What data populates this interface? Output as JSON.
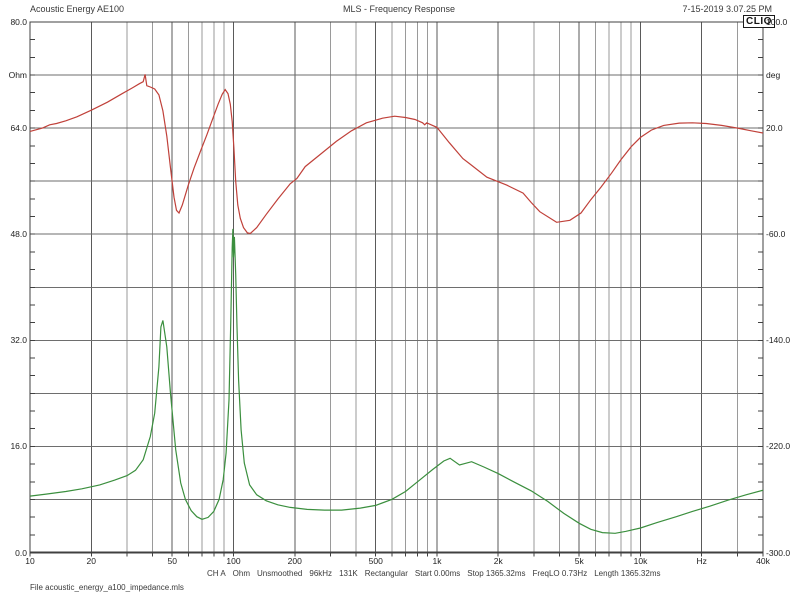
{
  "header": {
    "left": "Acoustic Energy AE100",
    "center": "MLS - Frequency Response",
    "right": "7-15-2019 3.07.25 PM"
  },
  "logo": "CLIO",
  "file_label": "File acoustic_energy_a100_impedance.mls",
  "status_bar": {
    "items": [
      "CH A",
      "Ohm",
      "Unsmoothed",
      "96kHz",
      "131K",
      "Rectangular",
      "Start 0.00ms",
      "Stop 1365.32ms",
      "FreqLO 0.73Hz",
      "Length 1365.32ms"
    ]
  },
  "colors": {
    "impedance": "#3b8f3e",
    "phase": "#c0413a",
    "grid_major": "#5a5a5a",
    "grid_minor": "#9a9a9a",
    "border": "#404040",
    "background": "#ffffff"
  },
  "chart_data": {
    "type": "line",
    "x_scale": "log",
    "x_range": [
      10,
      40000
    ],
    "x_axis_unit": "Hz",
    "x_tick_values": [
      10,
      20,
      50,
      100,
      200,
      500,
      1000,
      2000,
      5000,
      10000,
      20000,
      40000
    ],
    "x_tick_labels": [
      "10",
      "20",
      "50",
      "100",
      "200",
      "500",
      "1k",
      "2k",
      "5k",
      "10k",
      "Hz",
      "40k"
    ],
    "left_axis": {
      "unit": "Ohm",
      "min": 0,
      "max": 80,
      "grid_step": 8,
      "unit_label_at": 72,
      "tick_values": [
        80,
        64,
        48,
        32,
        16,
        0
      ],
      "tick_labels": [
        "80.0",
        "64.0",
        "48.0",
        "32.0",
        "16.0",
        "0.0"
      ]
    },
    "right_axis": {
      "unit": "deg",
      "min": -300,
      "max": 100,
      "unit_label_at": 60,
      "tick_values": [
        100,
        20,
        -60,
        -140,
        -220,
        -300
      ],
      "tick_labels": [
        "100.0",
        "20.0",
        "-60.0",
        "-140.0",
        "-220.0",
        "-300.0"
      ]
    },
    "grid": {
      "y_minor_tick_divisions": 30
    },
    "series": [
      {
        "name": "impedance-magnitude",
        "unit": "Ohm",
        "axis": "left",
        "color": "#3b8f3e",
        "points": [
          [
            10,
            8.5
          ],
          [
            12,
            8.8
          ],
          [
            15,
            9.2
          ],
          [
            18,
            9.6
          ],
          [
            22,
            10.2
          ],
          [
            26,
            10.9
          ],
          [
            30,
            11.6
          ],
          [
            33,
            12.4
          ],
          [
            36,
            14
          ],
          [
            39,
            17.5
          ],
          [
            41,
            21
          ],
          [
            43,
            28
          ],
          [
            44,
            34
          ],
          [
            45,
            35
          ],
          [
            47,
            31
          ],
          [
            49,
            24
          ],
          [
            52,
            15.5
          ],
          [
            55,
            10.5
          ],
          [
            58,
            8
          ],
          [
            62,
            6.3
          ],
          [
            66,
            5.4
          ],
          [
            70,
            5
          ],
          [
            75,
            5.3
          ],
          [
            80,
            6.2
          ],
          [
            85,
            8
          ],
          [
            89,
            11
          ],
          [
            92,
            15
          ],
          [
            95,
            23
          ],
          [
            97,
            35
          ],
          [
            98.5,
            46
          ],
          [
            99.3,
            48.8
          ],
          [
            100,
            44.5
          ],
          [
            101,
            47.6
          ],
          [
            102.5,
            42
          ],
          [
            104,
            34
          ],
          [
            106,
            26
          ],
          [
            109,
            18.5
          ],
          [
            113,
            13.5
          ],
          [
            120,
            10.2
          ],
          [
            130,
            8.7
          ],
          [
            145,
            7.8
          ],
          [
            165,
            7.2
          ],
          [
            190,
            6.8
          ],
          [
            230,
            6.5
          ],
          [
            280,
            6.4
          ],
          [
            340,
            6.4
          ],
          [
            420,
            6.7
          ],
          [
            500,
            7.1
          ],
          [
            600,
            8
          ],
          [
            700,
            9.2
          ],
          [
            820,
            10.9
          ],
          [
            950,
            12.5
          ],
          [
            1080,
            13.8
          ],
          [
            1160,
            14.2
          ],
          [
            1290,
            13.2
          ],
          [
            1480,
            13.7
          ],
          [
            1700,
            12.9
          ],
          [
            2000,
            11.9
          ],
          [
            2400,
            10.6
          ],
          [
            2900,
            9.3
          ],
          [
            3500,
            7.7
          ],
          [
            4200,
            5.9
          ],
          [
            5000,
            4.4
          ],
          [
            5700,
            3.5
          ],
          [
            6500,
            3
          ],
          [
            7500,
            2.9
          ],
          [
            8500,
            3.2
          ],
          [
            10000,
            3.7
          ],
          [
            12000,
            4.5
          ],
          [
            15000,
            5.4
          ],
          [
            18000,
            6.2
          ],
          [
            22000,
            7
          ],
          [
            27000,
            7.9
          ],
          [
            33000,
            8.7
          ],
          [
            40000,
            9.4
          ]
        ]
      },
      {
        "name": "phase",
        "unit": "deg",
        "axis": "right",
        "color": "#c0413a",
        "points": [
          [
            10,
            17.5
          ],
          [
            11.5,
            20
          ],
          [
            12.5,
            22.5
          ],
          [
            13.5,
            23.5
          ],
          [
            15,
            25.5
          ],
          [
            17,
            28.5
          ],
          [
            20,
            33.5
          ],
          [
            24,
            39.5
          ],
          [
            28,
            45.5
          ],
          [
            32,
            50.5
          ],
          [
            34.5,
            53.5
          ],
          [
            36,
            55
          ],
          [
            36.8,
            60.5
          ],
          [
            37.5,
            52
          ],
          [
            39,
            51
          ],
          [
            41,
            49.5
          ],
          [
            43,
            45
          ],
          [
            45,
            33
          ],
          [
            47,
            14
          ],
          [
            49,
            -10
          ],
          [
            51,
            -32
          ],
          [
            52.5,
            -42
          ],
          [
            54,
            -44
          ],
          [
            56,
            -38
          ],
          [
            60,
            -23
          ],
          [
            64,
            -10
          ],
          [
            69,
            3
          ],
          [
            74,
            15
          ],
          [
            79,
            27
          ],
          [
            84,
            38
          ],
          [
            88,
            45.5
          ],
          [
            91,
            49
          ],
          [
            94,
            46
          ],
          [
            96.5,
            38
          ],
          [
            98.5,
            25
          ],
          [
            100.5,
            5
          ],
          [
            102.5,
            -20
          ],
          [
            105,
            -38
          ],
          [
            108,
            -48
          ],
          [
            112,
            -55
          ],
          [
            117,
            -59
          ],
          [
            121,
            -59.5
          ],
          [
            130,
            -55
          ],
          [
            145,
            -45
          ],
          [
            165,
            -33.5
          ],
          [
            190,
            -22
          ],
          [
            205,
            -18
          ],
          [
            225,
            -9
          ],
          [
            266,
            0
          ],
          [
            320,
            10
          ],
          [
            380,
            18
          ],
          [
            450,
            24
          ],
          [
            540,
            27.5
          ],
          [
            620,
            29
          ],
          [
            700,
            28
          ],
          [
            780,
            26.5
          ],
          [
            850,
            24
          ],
          [
            870,
            22.5
          ],
          [
            890,
            24
          ],
          [
            1000,
            20.5
          ],
          [
            1150,
            9
          ],
          [
            1340,
            -3
          ],
          [
            1450,
            -7
          ],
          [
            1760,
            -17
          ],
          [
            2200,
            -23
          ],
          [
            2650,
            -29
          ],
          [
            2900,
            -36
          ],
          [
            3200,
            -43
          ],
          [
            3870,
            -51
          ],
          [
            4500,
            -49.5
          ],
          [
            5100,
            -44
          ],
          [
            5700,
            -34
          ],
          [
            6400,
            -24.5
          ],
          [
            7200,
            -14
          ],
          [
            8000,
            -4
          ],
          [
            9000,
            6
          ],
          [
            10000,
            13
          ],
          [
            11300,
            18.5
          ],
          [
            13000,
            22
          ],
          [
            15500,
            23.8
          ],
          [
            18000,
            24
          ],
          [
            21000,
            23.5
          ],
          [
            25000,
            22
          ],
          [
            30000,
            20
          ],
          [
            35000,
            18
          ],
          [
            40000,
            16.3
          ]
        ]
      }
    ]
  }
}
